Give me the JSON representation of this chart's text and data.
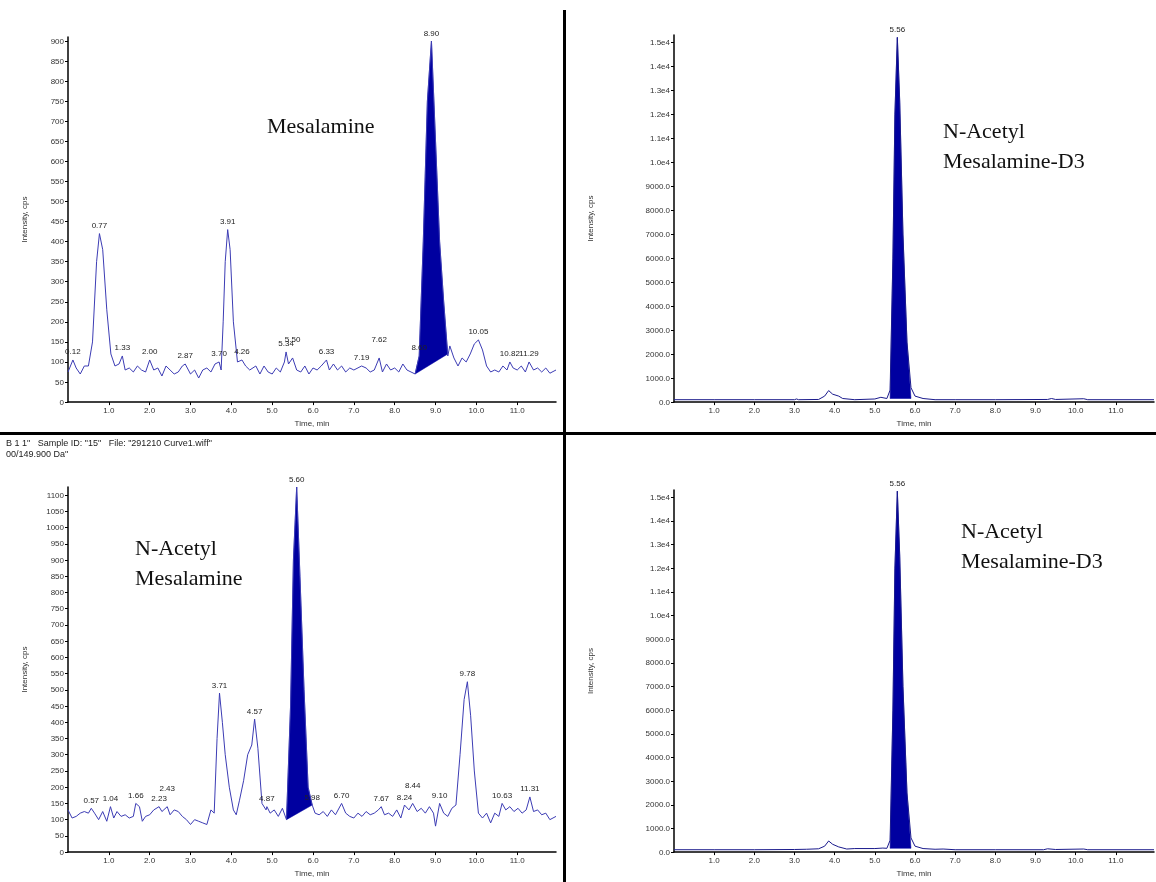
{
  "chart_data": [
    {
      "type": "line",
      "title": "Mesalamine",
      "xlabel": "Time, min",
      "ylabel": "Intensity, cps",
      "marker": "none",
      "xlim": [
        0,
        11.95
      ],
      "xticks": [
        {
          "value": 1,
          "label": "1.0"
        },
        {
          "value": 2,
          "label": "2.0"
        },
        {
          "value": 3,
          "label": "3.0"
        },
        {
          "value": 4,
          "label": "4.0"
        },
        {
          "value": 5,
          "label": "5.0"
        },
        {
          "value": 6,
          "label": "6.0"
        },
        {
          "value": 7,
          "label": "7.0"
        },
        {
          "value": 8,
          "label": "8.0"
        },
        {
          "value": 9,
          "label": "9.0"
        },
        {
          "value": 10,
          "label": "10.0"
        },
        {
          "value": 11,
          "label": "11.0"
        }
      ],
      "ylim": [
        0,
        910
      ],
      "yticks": [
        0,
        50,
        100,
        150,
        200,
        250,
        300,
        350,
        400,
        450,
        500,
        550,
        600,
        650,
        700,
        750,
        800,
        850,
        900
      ],
      "series": [
        {
          "type": "line",
          "color": "#3c3cb4",
          "x": [
            0,
            0.12,
            0.2,
            0.3,
            0.4,
            0.5,
            0.6,
            0.7,
            0.77,
            0.85,
            0.95,
            1.05,
            1.15,
            1.25,
            1.33,
            1.4,
            1.5,
            1.6,
            1.7,
            1.8,
            1.9,
            2.0,
            2.1,
            2.2,
            2.3,
            2.4,
            2.5,
            2.6,
            2.7,
            2.8,
            2.87,
            3.0,
            3.1,
            3.2,
            3.3,
            3.4,
            3.5,
            3.6,
            3.7,
            3.75,
            3.8,
            3.85,
            3.91,
            3.97,
            4.05,
            4.15,
            4.26,
            4.35,
            4.45,
            4.6,
            4.7,
            4.8,
            4.9,
            5.0,
            5.1,
            5.2,
            5.3,
            5.34,
            5.4,
            5.5,
            5.6,
            5.7,
            5.8,
            5.9,
            6.0,
            6.1,
            6.2,
            6.33,
            6.4,
            6.5,
            6.6,
            6.7,
            6.8,
            6.9,
            7.0,
            7.19,
            7.3,
            7.4,
            7.5,
            7.62,
            7.7,
            7.8,
            7.9,
            8.0,
            8.1,
            8.2,
            8.3,
            8.4,
            8.5,
            8.6,
            8.7,
            8.8,
            8.9,
            9.0,
            9.1,
            9.2,
            9.3,
            9.35,
            9.45,
            9.55,
            9.65,
            9.75,
            9.85,
            9.95,
            10.05,
            10.15,
            10.25,
            10.35,
            10.45,
            10.55,
            10.65,
            10.75,
            10.82,
            10.9,
            11.0,
            11.1,
            11.2,
            11.29,
            11.4,
            11.5,
            11.6,
            11.7,
            11.8,
            11.95
          ],
          "values": [
            75,
            105,
            85,
            70,
            90,
            90,
            150,
            350,
            420,
            380,
            230,
            120,
            90,
            95,
            115,
            80,
            85,
            75,
            90,
            80,
            75,
            105,
            80,
            85,
            65,
            90,
            80,
            70,
            75,
            90,
            95,
            70,
            80,
            60,
            80,
            85,
            75,
            95,
            100,
            80,
            200,
            350,
            430,
            380,
            200,
            100,
            105,
            90,
            80,
            90,
            70,
            90,
            75,
            70,
            85,
            75,
            100,
            125,
            95,
            110,
            80,
            75,
            90,
            70,
            85,
            80,
            90,
            105,
            80,
            95,
            80,
            90,
            75,
            85,
            80,
            90,
            85,
            75,
            80,
            110,
            75,
            95,
            80,
            85,
            75,
            95,
            80,
            75,
            70,
            115,
            400,
            750,
            900,
            650,
            400,
            250,
            115,
            140,
            110,
            90,
            110,
            100,
            120,
            145,
            155,
            130,
            90,
            75,
            80,
            75,
            90,
            80,
            100,
            85,
            80,
            90,
            75,
            100,
            80,
            85,
            75,
            85,
            72,
            80
          ]
        },
        {
          "type": "area",
          "color": "#0000a0",
          "x": [
            8.5,
            8.6,
            8.7,
            8.8,
            8.9,
            9.0,
            9.1,
            9.2,
            9.3
          ],
          "values": [
            70,
            115,
            400,
            750,
            900,
            650,
            400,
            250,
            120
          ]
        }
      ],
      "annotations": [
        {
          "text": "0.12",
          "x": 0.12,
          "y": 105
        },
        {
          "text": "0.77",
          "x": 0.77,
          "y": 420
        },
        {
          "text": "1.33",
          "x": 1.33,
          "y": 115
        },
        {
          "text": "2.00",
          "x": 2.0,
          "y": 105
        },
        {
          "text": "2.87",
          "x": 2.87,
          "y": 95
        },
        {
          "text": "3.70",
          "x": 3.7,
          "y": 100
        },
        {
          "text": "3.91",
          "x": 3.91,
          "y": 430
        },
        {
          "text": "4.26",
          "x": 4.26,
          "y": 105
        },
        {
          "text": "5.34",
          "x": 5.34,
          "y": 125
        },
        {
          "text": "5.50",
          "x": 5.5,
          "y": 110
        },
        {
          "text": "6.33",
          "x": 6.33,
          "y": 105
        },
        {
          "text": "7.19",
          "x": 7.19,
          "y": 90
        },
        {
          "text": "7.62",
          "x": 7.62,
          "y": 110
        },
        {
          "text": "8.60",
          "x": 8.6,
          "y": 115
        },
        {
          "text": "8.90",
          "x": 8.9,
          "y": 900
        },
        {
          "text": "10.05",
          "x": 10.05,
          "y": 155
        },
        {
          "text": "10.82",
          "x": 10.82,
          "y": 100
        },
        {
          "text": "11.29",
          "x": 11.29,
          "y": 100
        }
      ]
    },
    {
      "type": "line",
      "title": "N-Acetyl\nMesalamine-D3",
      "xlabel": "Time, min",
      "ylabel": "Intensity, cps",
      "marker": "none",
      "xlim": [
        0,
        11.95
      ],
      "xticks": [
        {
          "value": 1,
          "label": "1.0"
        },
        {
          "value": 2,
          "label": "2.0"
        },
        {
          "value": 3,
          "label": "3.0"
        },
        {
          "value": 4,
          "label": "4.0"
        },
        {
          "value": 5,
          "label": "5.0"
        },
        {
          "value": 6,
          "label": "6.0"
        },
        {
          "value": 7,
          "label": "7.0"
        },
        {
          "value": 8,
          "label": "8.0"
        },
        {
          "value": 9,
          "label": "9.0"
        },
        {
          "value": 10,
          "label": "10.0"
        },
        {
          "value": 11,
          "label": "11.0"
        }
      ],
      "ylim": [
        0,
        15300
      ],
      "yticks": [
        {
          "value": 0,
          "label": "0.0"
        },
        {
          "value": 1000,
          "label": "1000.0"
        },
        {
          "value": 2000,
          "label": "2000.0"
        },
        {
          "value": 3000,
          "label": "3000.0"
        },
        {
          "value": 4000,
          "label": "4000.0"
        },
        {
          "value": 5000,
          "label": "5000.0"
        },
        {
          "value": 6000,
          "label": "6000.0"
        },
        {
          "value": 7000,
          "label": "7000.0"
        },
        {
          "value": 8000,
          "label": "8000.0"
        },
        {
          "value": 9000,
          "label": "9000.0"
        },
        {
          "value": 10000,
          "label": "1.0e4"
        },
        {
          "value": 11000,
          "label": "1.1e4"
        },
        {
          "value": 12000,
          "label": "1.2e4"
        },
        {
          "value": 13000,
          "label": "1.3e4"
        },
        {
          "value": 14000,
          "label": "1.4e4"
        },
        {
          "value": 15000,
          "label": "1.5e4"
        }
      ],
      "series": [
        {
          "type": "line",
          "color": "#1a1a8c",
          "x": [
            0,
            1.0,
            2.0,
            3.0,
            3.05,
            3.1,
            3.6,
            3.75,
            3.85,
            3.95,
            4.1,
            4.2,
            4.5,
            5.0,
            5.15,
            5.3,
            5.38,
            5.45,
            5.5,
            5.56,
            5.62,
            5.7,
            5.8,
            5.9,
            6.0,
            6.2,
            6.5,
            7.0,
            8.0,
            9.3,
            9.4,
            9.5,
            10.2,
            10.3,
            11.95
          ],
          "values": [
            100,
            100,
            100,
            100,
            130,
            100,
            110,
            250,
            480,
            330,
            250,
            150,
            100,
            130,
            200,
            150,
            500,
            6000,
            12000,
            15200,
            12500,
            7000,
            2500,
            600,
            250,
            150,
            100,
            100,
            100,
            110,
            150,
            110,
            140,
            100,
            100
          ]
        },
        {
          "type": "area",
          "color": "#0000a0",
          "x": [
            5.38,
            5.45,
            5.5,
            5.56,
            5.62,
            5.7,
            5.8,
            5.9
          ],
          "values": [
            150,
            6000,
            12000,
            15200,
            12500,
            7000,
            2500,
            150
          ]
        }
      ],
      "annotations": [
        {
          "text": "5.56",
          "x": 5.56,
          "y": 15200
        }
      ]
    },
    {
      "type": "line",
      "title": "N-Acetyl\nMesalamine",
      "xlabel": "Time, min",
      "ylabel": "Intensity, cps",
      "marker": "none",
      "xlim": [
        0,
        11.95
      ],
      "xticks": [
        {
          "value": 1,
          "label": "1.0"
        },
        {
          "value": 2,
          "label": "2.0"
        },
        {
          "value": 3,
          "label": "3.0"
        },
        {
          "value": 4,
          "label": "4.0"
        },
        {
          "value": 5,
          "label": "5.0"
        },
        {
          "value": 6,
          "label": "6.0"
        },
        {
          "value": 7,
          "label": "7.0"
        },
        {
          "value": 8,
          "label": "8.0"
        },
        {
          "value": 9,
          "label": "9.0"
        },
        {
          "value": 10,
          "label": "10.0"
        },
        {
          "value": 11,
          "label": "11.0"
        }
      ],
      "ylim": [
        0,
        1125
      ],
      "yticks": [
        0,
        50,
        100,
        150,
        200,
        250,
        300,
        350,
        400,
        450,
        500,
        550,
        600,
        650,
        700,
        750,
        800,
        850,
        900,
        950,
        1000,
        1050,
        1100
      ],
      "series": [
        {
          "type": "line",
          "color": "#3c3cb4",
          "x": [
            0,
            0.1,
            0.2,
            0.3,
            0.4,
            0.5,
            0.57,
            0.65,
            0.75,
            0.85,
            0.95,
            1.04,
            1.12,
            1.2,
            1.3,
            1.4,
            1.5,
            1.6,
            1.66,
            1.75,
            1.82,
            1.9,
            2.0,
            2.1,
            2.23,
            2.3,
            2.43,
            2.5,
            2.6,
            2.7,
            2.8,
            2.9,
            3.0,
            3.1,
            3.2,
            3.3,
            3.4,
            3.5,
            3.58,
            3.65,
            3.71,
            3.78,
            3.85,
            3.95,
            4.05,
            4.12,
            4.2,
            4.3,
            4.4,
            4.5,
            4.57,
            4.65,
            4.75,
            4.85,
            4.87,
            4.95,
            5.05,
            5.15,
            5.25,
            5.35,
            5.45,
            5.52,
            5.6,
            5.68,
            5.78,
            5.88,
            5.98,
            6.05,
            6.15,
            6.25,
            6.35,
            6.45,
            6.55,
            6.7,
            6.8,
            6.9,
            7.0,
            7.1,
            7.2,
            7.3,
            7.4,
            7.5,
            7.6,
            7.67,
            7.75,
            7.85,
            7.95,
            8.05,
            8.15,
            8.24,
            8.35,
            8.44,
            8.55,
            8.65,
            8.75,
            8.85,
            8.95,
            9.0,
            9.1,
            9.2,
            9.3,
            9.4,
            9.5,
            9.6,
            9.7,
            9.78,
            9.86,
            9.95,
            10.05,
            10.15,
            10.25,
            10.35,
            10.45,
            10.55,
            10.63,
            10.72,
            10.82,
            10.92,
            11.02,
            11.12,
            11.22,
            11.31,
            11.4,
            11.5,
            11.6,
            11.7,
            11.8,
            11.95
          ],
          "values": [
            130,
            105,
            110,
            120,
            125,
            120,
            135,
            120,
            100,
            125,
            95,
            140,
            105,
            125,
            110,
            115,
            105,
            110,
            150,
            140,
            95,
            110,
            115,
            130,
            140,
            125,
            140,
            115,
            130,
            125,
            110,
            100,
            85,
            100,
            95,
            90,
            85,
            130,
            120,
            350,
            490,
            400,
            300,
            200,
            130,
            115,
            160,
            220,
            300,
            330,
            410,
            320,
            150,
            130,
            140,
            120,
            130,
            110,
            135,
            100,
            450,
            900,
            1125,
            850,
            500,
            200,
            145,
            120,
            115,
            125,
            110,
            130,
            115,
            150,
            120,
            110,
            105,
            120,
            110,
            125,
            115,
            120,
            130,
            140,
            115,
            120,
            110,
            130,
            105,
            145,
            130,
            150,
            125,
            135,
            120,
            140,
            120,
            80,
            150,
            120,
            110,
            135,
            145,
            300,
            470,
            525,
            420,
            250,
            120,
            105,
            120,
            90,
            120,
            110,
            150,
            130,
            140,
            125,
            135,
            120,
            130,
            170,
            125,
            130,
            115,
            120,
            100,
            110
          ]
        },
        {
          "type": "area",
          "color": "#0000a0",
          "x": [
            5.35,
            5.45,
            5.52,
            5.6,
            5.68,
            5.78,
            5.88,
            5.98
          ],
          "values": [
            100,
            450,
            900,
            1125,
            850,
            500,
            200,
            145
          ]
        }
      ],
      "annotations": [
        "B 1 1\"   Sample ID: \"15\"   File: \"291210 Curve1.wiff\"",
        "00/149.900 Da\"",
        {
          "text": "0.57",
          "x": 0.57,
          "y": 135
        },
        {
          "text": "1.04",
          "x": 1.04,
          "y": 140
        },
        {
          "text": "1.66",
          "x": 1.66,
          "y": 150
        },
        {
          "text": "2.23",
          "x": 2.23,
          "y": 140
        },
        {
          "text": "2.43",
          "x": 2.43,
          "y": 140
        },
        {
          "text": "3.71",
          "x": 3.71,
          "y": 490
        },
        {
          "text": "4.57",
          "x": 4.57,
          "y": 410
        },
        {
          "text": "4.87",
          "x": 4.87,
          "y": 140
        },
        {
          "text": "5.60",
          "x": 5.6,
          "y": 1125
        },
        {
          "text": "5.98",
          "x": 5.98,
          "y": 145
        },
        {
          "text": "6.70",
          "x": 6.7,
          "y": 150
        },
        {
          "text": "7.67",
          "x": 7.67,
          "y": 140
        },
        {
          "text": "8.24",
          "x": 8.24,
          "y": 145
        },
        {
          "text": "8.44",
          "x": 8.44,
          "y": 150
        },
        {
          "text": "9.10",
          "x": 9.1,
          "y": 150
        },
        {
          "text": "9.78",
          "x": 9.78,
          "y": 525
        },
        {
          "text": "10.63",
          "x": 10.63,
          "y": 150
        },
        {
          "text": "11.31",
          "x": 11.31,
          "y": 170
        }
      ]
    },
    {
      "type": "line",
      "title": "N-Acetyl\nMesalamine-D3",
      "xlabel": "Time, min",
      "ylabel": "Intensity, cps",
      "marker": "none",
      "xlim": [
        0,
        11.95
      ],
      "xticks": [
        {
          "value": 1,
          "label": "1.0"
        },
        {
          "value": 2,
          "label": "2.0"
        },
        {
          "value": 3,
          "label": "3.0"
        },
        {
          "value": 4,
          "label": "4.0"
        },
        {
          "value": 5,
          "label": "5.0"
        },
        {
          "value": 6,
          "label": "6.0"
        },
        {
          "value": 7,
          "label": "7.0"
        },
        {
          "value": 8,
          "label": "8.0"
        },
        {
          "value": 9,
          "label": "9.0"
        },
        {
          "value": 10,
          "label": "10.0"
        },
        {
          "value": 11,
          "label": "11.0"
        }
      ],
      "ylim": [
        0,
        15300
      ],
      "yticks": [
        {
          "value": 0,
          "label": "0.0"
        },
        {
          "value": 1000,
          "label": "1000.0"
        },
        {
          "value": 2000,
          "label": "2000.0"
        },
        {
          "value": 3000,
          "label": "3000.0"
        },
        {
          "value": 4000,
          "label": "4000.0"
        },
        {
          "value": 5000,
          "label": "5000.0"
        },
        {
          "value": 6000,
          "label": "6000.0"
        },
        {
          "value": 7000,
          "label": "7000.0"
        },
        {
          "value": 8000,
          "label": "8000.0"
        },
        {
          "value": 9000,
          "label": "9000.0"
        },
        {
          "value": 10000,
          "label": "1.0e4"
        },
        {
          "value": 11000,
          "label": "1.1e4"
        },
        {
          "value": 12000,
          "label": "1.2e4"
        },
        {
          "value": 13000,
          "label": "1.3e4"
        },
        {
          "value": 14000,
          "label": "1.4e4"
        },
        {
          "value": 15000,
          "label": "1.5e4"
        }
      ],
      "series": [
        {
          "type": "line",
          "color": "#1a1a8c",
          "x": [
            0,
            1.0,
            2.0,
            3.0,
            3.3,
            3.6,
            3.75,
            3.85,
            3.95,
            4.1,
            4.3,
            4.5,
            5.0,
            5.2,
            5.3,
            5.38,
            5.45,
            5.5,
            5.56,
            5.62,
            5.7,
            5.8,
            5.9,
            6.0,
            6.2,
            6.5,
            6.7,
            7.0,
            8.0,
            9.2,
            9.3,
            9.5,
            10.2,
            10.3,
            11.95
          ],
          "values": [
            100,
            100,
            100,
            110,
            120,
            140,
            250,
            470,
            330,
            220,
            130,
            150,
            150,
            170,
            160,
            500,
            6000,
            12000,
            15250,
            12500,
            7000,
            2500,
            600,
            250,
            150,
            120,
            130,
            100,
            100,
            100,
            140,
            110,
            130,
            100,
            100
          ]
        },
        {
          "type": "area",
          "color": "#0000a0",
          "x": [
            5.38,
            5.45,
            5.5,
            5.56,
            5.62,
            5.7,
            5.8,
            5.9
          ],
          "values": [
            160,
            6000,
            12000,
            15250,
            12500,
            7000,
            2500,
            160
          ]
        }
      ],
      "annotations": [
        {
          "text": "5.56",
          "x": 5.56,
          "y": 15250
        }
      ]
    }
  ]
}
